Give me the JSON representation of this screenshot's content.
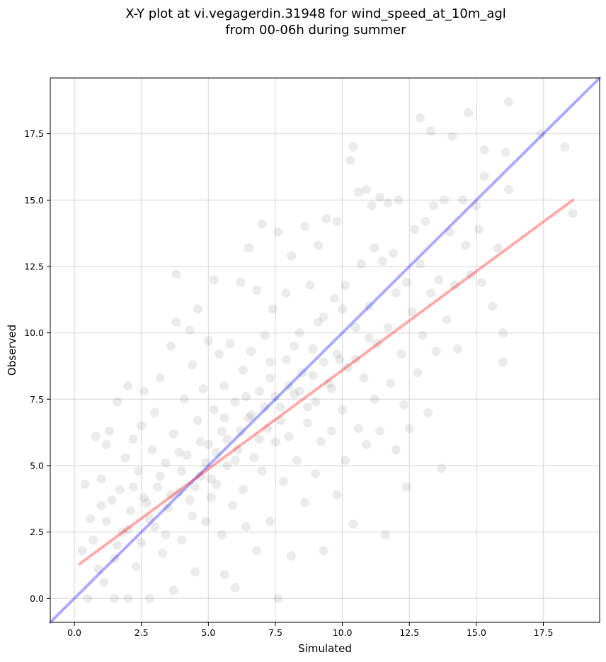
{
  "chart_data": {
    "type": "scatter",
    "title": [
      "X-Y plot at vi.vegagerdin.31948 for wind_speed_at_10m_agl",
      "from 00-06h during summer"
    ],
    "xlabel": "Simulated",
    "ylabel": "Observed",
    "xlim": [
      -0.9,
      19.6
    ],
    "ylim": [
      -0.9,
      19.6
    ],
    "xticks": [
      "0.0",
      "2.5",
      "5.0",
      "7.5",
      "10.0",
      "12.5",
      "15.0",
      "17.5"
    ],
    "yticks": [
      "0.0",
      "2.5",
      "5.0",
      "7.5",
      "10.0",
      "12.5",
      "15.0",
      "17.5"
    ],
    "grid": true,
    "legend": "none",
    "colors": {
      "points": "#000000",
      "identity_line": "#0000ff",
      "fit_line": "#ff0000"
    },
    "lines": [
      {
        "kind": "identity",
        "x": [
          -0.9,
          19.6
        ],
        "y": [
          -0.9,
          19.6
        ],
        "color": "#0000ff"
      },
      {
        "kind": "regression",
        "x": [
          0.2,
          18.6
        ],
        "y": [
          1.3,
          15.0
        ],
        "color": "#ff0000"
      }
    ],
    "points": [
      [
        0.3,
        1.8
      ],
      [
        0.4,
        4.3
      ],
      [
        0.5,
        0.0
      ],
      [
        0.6,
        3.0
      ],
      [
        0.7,
        2.2
      ],
      [
        0.8,
        6.1
      ],
      [
        0.9,
        1.1
      ],
      [
        1.0,
        4.5
      ],
      [
        1.1,
        0.6
      ],
      [
        1.2,
        5.8
      ],
      [
        1.2,
        2.9
      ],
      [
        1.3,
        6.3
      ],
      [
        1.4,
        3.7
      ],
      [
        1.5,
        0.0
      ],
      [
        1.5,
        1.5
      ],
      [
        1.6,
        7.4
      ],
      [
        1.7,
        4.1
      ],
      [
        1.8,
        2.5
      ],
      [
        1.9,
        5.3
      ],
      [
        2.0,
        8.0
      ],
      [
        2.0,
        0.0
      ],
      [
        2.1,
        3.3
      ],
      [
        2.2,
        6.0
      ],
      [
        2.3,
        1.2
      ],
      [
        2.4,
        4.8
      ],
      [
        2.5,
        6.5
      ],
      [
        2.5,
        2.1
      ],
      [
        2.6,
        7.8
      ],
      [
        2.7,
        3.6
      ],
      [
        2.8,
        0.0
      ],
      [
        2.9,
        5.6
      ],
      [
        3.0,
        2.7
      ],
      [
        3.0,
        7.0
      ],
      [
        3.1,
        4.2
      ],
      [
        3.2,
        8.3
      ],
      [
        3.3,
        1.7
      ],
      [
        3.4,
        5.1
      ],
      [
        3.5,
        3.4
      ],
      [
        3.6,
        9.5
      ],
      [
        3.7,
        0.3
      ],
      [
        3.7,
        6.2
      ],
      [
        3.8,
        10.4
      ],
      [
        3.8,
        12.2
      ],
      [
        3.9,
        4.0
      ],
      [
        4.0,
        2.2
      ],
      [
        4.1,
        7.5
      ],
      [
        4.2,
        5.4
      ],
      [
        4.3,
        10.1
      ],
      [
        4.4,
        3.1
      ],
      [
        4.4,
        8.8
      ],
      [
        4.5,
        1.0
      ],
      [
        4.6,
        6.7
      ],
      [
        4.6,
        10.9
      ],
      [
        4.7,
        4.6
      ],
      [
        4.8,
        7.9
      ],
      [
        4.9,
        2.9
      ],
      [
        5.0,
        5.8
      ],
      [
        5.0,
        9.7
      ],
      [
        5.1,
        3.8
      ],
      [
        5.2,
        7.1
      ],
      [
        5.2,
        12.0
      ],
      [
        5.3,
        4.3
      ],
      [
        5.4,
        9.2
      ],
      [
        5.5,
        2.4
      ],
      [
        5.5,
        6.3
      ],
      [
        5.6,
        0.9
      ],
      [
        5.6,
        8.0
      ],
      [
        5.7,
        5.0
      ],
      [
        5.8,
        9.6
      ],
      [
        5.9,
        3.5
      ],
      [
        6.0,
        7.4
      ],
      [
        6.0,
        0.4
      ],
      [
        6.1,
        5.6
      ],
      [
        6.2,
        11.9
      ],
      [
        6.3,
        4.1
      ],
      [
        6.3,
        8.6
      ],
      [
        6.4,
        2.7
      ],
      [
        6.5,
        6.8
      ],
      [
        6.5,
        13.2
      ],
      [
        6.6,
        9.3
      ],
      [
        6.7,
        5.3
      ],
      [
        6.8,
        11.6
      ],
      [
        6.8,
        1.8
      ],
      [
        6.9,
        7.8
      ],
      [
        7.0,
        14.1
      ],
      [
        7.0,
        4.8
      ],
      [
        7.1,
        9.9
      ],
      [
        7.2,
        6.4
      ],
      [
        7.3,
        2.9
      ],
      [
        7.3,
        8.3
      ],
      [
        7.4,
        10.9
      ],
      [
        7.5,
        5.9
      ],
      [
        7.6,
        13.8
      ],
      [
        7.6,
        0.0
      ],
      [
        7.7,
        7.2
      ],
      [
        7.8,
        4.4
      ],
      [
        7.9,
        11.5
      ],
      [
        7.9,
        9.0
      ],
      [
        8.0,
        6.1
      ],
      [
        8.1,
        1.6
      ],
      [
        8.1,
        12.9
      ],
      [
        8.2,
        7.7
      ],
      [
        8.3,
        5.2
      ],
      [
        8.4,
        10.0
      ],
      [
        8.5,
        8.5
      ],
      [
        8.6,
        3.6
      ],
      [
        8.6,
        14.0
      ],
      [
        8.7,
        6.6
      ],
      [
        8.8,
        11.8
      ],
      [
        8.9,
        9.4
      ],
      [
        9.0,
        4.7
      ],
      [
        9.0,
        7.4
      ],
      [
        9.1,
        13.3
      ],
      [
        9.2,
        5.9
      ],
      [
        9.3,
        10.6
      ],
      [
        9.3,
        1.8
      ],
      [
        9.4,
        14.3
      ],
      [
        9.5,
        8.1
      ],
      [
        9.6,
        6.3
      ],
      [
        9.7,
        11.3
      ],
      [
        9.8,
        3.9
      ],
      [
        9.8,
        14.2
      ],
      [
        9.9,
        9.0
      ],
      [
        10.0,
        7.1
      ],
      [
        10.1,
        5.2
      ],
      [
        10.1,
        11.8
      ],
      [
        10.2,
        8.7
      ],
      [
        10.3,
        16.5
      ],
      [
        10.4,
        17.0
      ],
      [
        10.4,
        2.8
      ],
      [
        10.5,
        10.2
      ],
      [
        10.6,
        6.4
      ],
      [
        10.6,
        15.3
      ],
      [
        10.7,
        12.6
      ],
      [
        10.8,
        8.3
      ],
      [
        10.9,
        15.4
      ],
      [
        10.9,
        5.8
      ],
      [
        11.0,
        11.0
      ],
      [
        11.1,
        14.8
      ],
      [
        11.2,
        7.5
      ],
      [
        11.2,
        13.2
      ],
      [
        11.3,
        9.6
      ],
      [
        11.4,
        15.1
      ],
      [
        11.4,
        6.3
      ],
      [
        11.5,
        12.7
      ],
      [
        11.6,
        2.4
      ],
      [
        11.7,
        10.2
      ],
      [
        11.7,
        14.9
      ],
      [
        11.8,
        8.1
      ],
      [
        11.9,
        13.0
      ],
      [
        12.0,
        11.5
      ],
      [
        12.0,
        5.6
      ],
      [
        12.1,
        15.0
      ],
      [
        12.2,
        9.2
      ],
      [
        12.3,
        7.3
      ],
      [
        12.4,
        11.9
      ],
      [
        12.4,
        4.2
      ],
      [
        12.5,
        6.4
      ],
      [
        12.6,
        10.8
      ],
      [
        12.7,
        13.9
      ],
      [
        12.8,
        8.5
      ],
      [
        12.9,
        18.1
      ],
      [
        12.9,
        12.6
      ],
      [
        13.0,
        9.9
      ],
      [
        13.1,
        14.2
      ],
      [
        13.2,
        7.0
      ],
      [
        13.3,
        17.6
      ],
      [
        13.3,
        11.5
      ],
      [
        13.4,
        14.8
      ],
      [
        13.5,
        9.3
      ],
      [
        13.6,
        12.0
      ],
      [
        13.7,
        4.9
      ],
      [
        13.8,
        15.0
      ],
      [
        13.9,
        10.5
      ],
      [
        14.0,
        13.8
      ],
      [
        14.1,
        17.4
      ],
      [
        14.2,
        11.8
      ],
      [
        14.3,
        9.4
      ],
      [
        14.5,
        15.0
      ],
      [
        14.6,
        13.3
      ],
      [
        14.7,
        18.3
      ],
      [
        14.8,
        12.2
      ],
      [
        15.0,
        14.8
      ],
      [
        15.1,
        13.9
      ],
      [
        15.2,
        11.9
      ],
      [
        15.3,
        16.9
      ],
      [
        15.3,
        15.9
      ],
      [
        15.6,
        11.0
      ],
      [
        15.8,
        13.2
      ],
      [
        16.0,
        8.9
      ],
      [
        16.0,
        10.0
      ],
      [
        16.1,
        16.8
      ],
      [
        16.2,
        18.7
      ],
      [
        16.2,
        15.4
      ],
      [
        17.4,
        17.5
      ],
      [
        18.3,
        17.0
      ],
      [
        18.6,
        14.5
      ],
      [
        1.0,
        3.5
      ],
      [
        1.6,
        2.0
      ],
      [
        2.2,
        4.2
      ],
      [
        2.8,
        3.0
      ],
      [
        3.2,
        4.6
      ],
      [
        3.6,
        3.9
      ],
      [
        4.0,
        4.8
      ],
      [
        4.5,
        4.2
      ],
      [
        4.9,
        5.1
      ],
      [
        5.3,
        5.5
      ],
      [
        5.7,
        6.0
      ],
      [
        6.2,
        6.3
      ],
      [
        6.6,
        6.9
      ],
      [
        7.1,
        7.2
      ],
      [
        7.5,
        7.6
      ],
      [
        8.0,
        8.0
      ],
      [
        8.4,
        7.8
      ],
      [
        8.9,
        8.4
      ],
      [
        9.3,
        8.9
      ],
      [
        9.8,
        9.2
      ],
      [
        2.0,
        2.6
      ],
      [
        2.6,
        3.8
      ],
      [
        3.4,
        2.4
      ],
      [
        3.9,
        5.5
      ],
      [
        4.3,
        3.7
      ],
      [
        4.7,
        5.9
      ],
      [
        5.1,
        4.5
      ],
      [
        5.6,
        6.8
      ],
      [
        6.0,
        5.2
      ],
      [
        6.4,
        7.6
      ],
      [
        6.9,
        6.0
      ],
      [
        7.3,
        8.9
      ],
      [
        7.7,
        6.7
      ],
      [
        8.2,
        9.5
      ],
      [
        8.7,
        7.2
      ],
      [
        9.1,
        10.4
      ],
      [
        9.6,
        7.9
      ],
      [
        10.0,
        10.9
      ],
      [
        10.5,
        9.0
      ],
      [
        11.0,
        9.8
      ]
    ]
  }
}
